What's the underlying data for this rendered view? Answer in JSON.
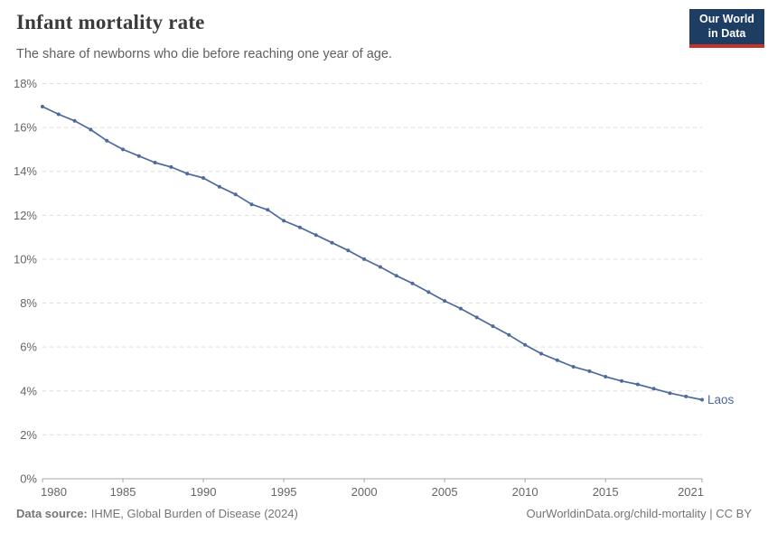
{
  "header": {
    "title": "Infant mortality rate",
    "subtitle": "The share of newborns who die before reaching one year of age.",
    "logo": {
      "line1": "Our World",
      "line2": "in Data",
      "bg_color": "#1d3d63",
      "accent_color": "#c5332c"
    }
  },
  "chart_data": {
    "type": "line",
    "title": "Infant mortality rate",
    "xlabel": "",
    "ylabel": "",
    "xlim": [
      1980,
      2021
    ],
    "ylim": [
      0,
      18
    ],
    "grid": "horizontal-dashed",
    "legend_position": "end-of-line-label",
    "x_ticks": [
      1980,
      1985,
      1990,
      1995,
      2000,
      2005,
      2010,
      2015,
      2021
    ],
    "y_ticks": [
      0,
      2,
      4,
      6,
      8,
      10,
      12,
      14,
      16,
      18
    ],
    "y_tick_suffix": "%",
    "series": [
      {
        "name": "Laos",
        "color": "#4C6A9C",
        "x": [
          1980,
          1981,
          1982,
          1983,
          1984,
          1985,
          1986,
          1987,
          1988,
          1989,
          1990,
          1991,
          1992,
          1993,
          1994,
          1995,
          1996,
          1997,
          1998,
          1999,
          2000,
          2001,
          2002,
          2003,
          2004,
          2005,
          2006,
          2007,
          2008,
          2009,
          2010,
          2011,
          2012,
          2013,
          2014,
          2015,
          2016,
          2017,
          2018,
          2019,
          2020,
          2021
        ],
        "values": [
          16.95,
          16.6,
          16.3,
          15.9,
          15.4,
          15.0,
          14.7,
          14.4,
          14.2,
          13.9,
          13.7,
          13.3,
          12.95,
          12.5,
          12.25,
          11.75,
          11.45,
          11.1,
          10.75,
          10.4,
          10.0,
          9.65,
          9.25,
          8.9,
          8.5,
          8.1,
          7.75,
          7.35,
          6.95,
          6.55,
          6.1,
          5.7,
          5.4,
          5.1,
          4.9,
          4.65,
          4.45,
          4.3,
          4.1,
          3.9,
          3.75,
          3.6
        ]
      }
    ],
    "colors": {
      "gridline": "#dcdcdc",
      "axis": "#a5a5a5",
      "tick_label": "#666666"
    }
  },
  "footer": {
    "source_label": "Data source:",
    "source_value": "IHME, Global Burden of Disease (2024)",
    "attribution": "OurWorldinData.org/child-mortality | CC BY"
  }
}
